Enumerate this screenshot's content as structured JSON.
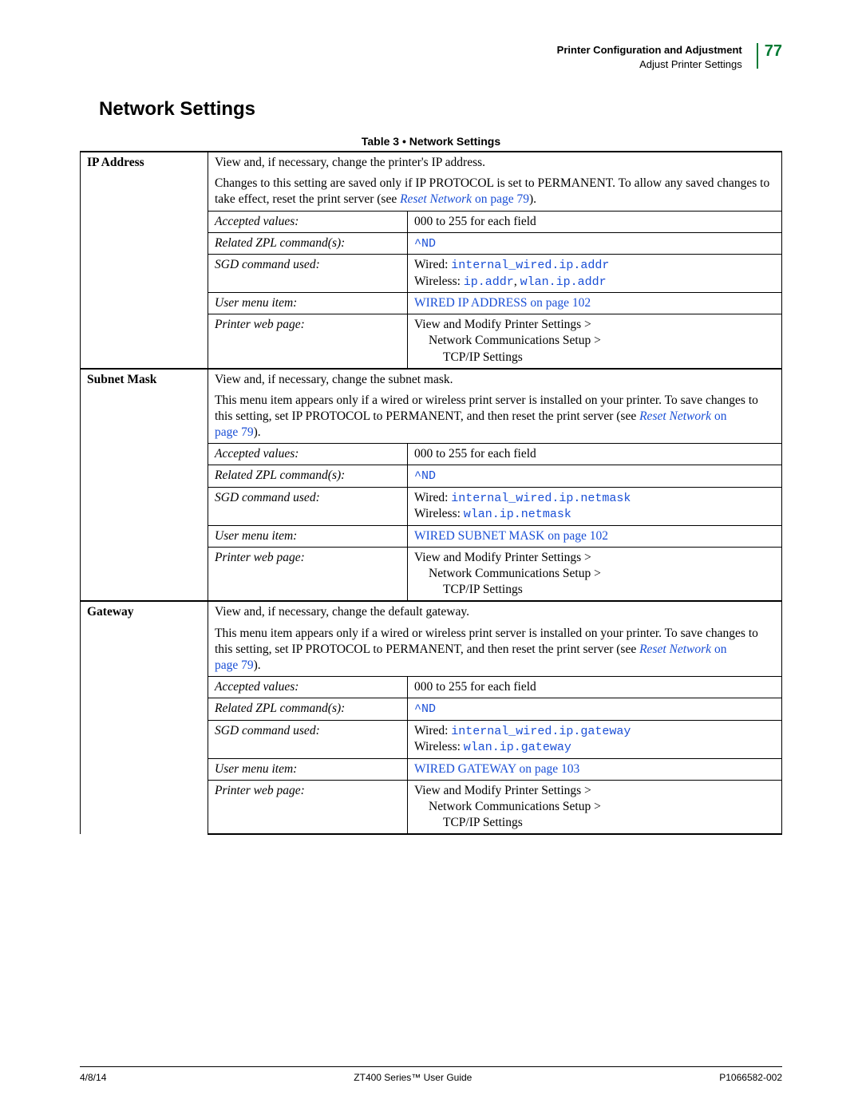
{
  "header": {
    "line1": "Printer Configuration and Adjustment",
    "line2": "Adjust Printer Settings",
    "page_number": "77"
  },
  "section_title": "Network Settings",
  "table_caption": "Table 3 • Network Settings",
  "labels": {
    "accepted_values": "Accepted values:",
    "zpl": "Related ZPL command(s):",
    "sgd": "SGD command used:",
    "menu": "User menu item:",
    "web": "Printer web page:"
  },
  "common": {
    "accepted": "000 to 255 for each field",
    "zpl_cmd": "^ND",
    "web1": "View and Modify Printer Settings >",
    "web2": "Network Communications Setup >",
    "web3": "TCP/IP Settings",
    "wired_prefix": "Wired: ",
    "wireless_prefix": "Wireless: ",
    "reset_link": "Reset Network",
    "reset_page_suffix": " on page 79"
  },
  "rows": {
    "ip": {
      "name": "IP Address",
      "desc1": "View and, if necessary, change the printer's IP address.",
      "desc2a": "Changes to this setting are saved only if IP PROTOCOL is set to PERMANENT. To allow any saved changes to take effect, reset the print server (see ",
      "desc2c": ").",
      "sgd_wired": "internal_wired.ip.addr",
      "sgd_wireless_a": "ip.addr",
      "sgd_wireless_sep": ", ",
      "sgd_wireless_b": "wlan.ip.addr",
      "menu_link": "WIRED IP ADDRESS on page 102"
    },
    "subnet": {
      "name": "Subnet Mask",
      "desc1": "View and, if necessary, change the subnet mask.",
      "desc2a": "This menu item appears only if a wired or wireless print server is installed on your printer. To save changes to this setting, set IP PROTOCOL to PERMANENT, and then reset the print server (see ",
      "desc2c": ").",
      "sgd_wired": "internal_wired.ip.netmask",
      "sgd_wireless": "wlan.ip.netmask",
      "menu_link": "WIRED SUBNET MASK on page 102"
    },
    "gateway": {
      "name": "Gateway",
      "desc1": "View and, if necessary, change the default gateway.",
      "desc2a": "This menu item appears only if a wired or wireless print server is installed on your printer. To save changes to this setting, set IP PROTOCOL to PERMANENT, and then reset the print server (see ",
      "desc2c": ").",
      "sgd_wired": "internal_wired.ip.gateway",
      "sgd_wireless": "wlan.ip.gateway",
      "menu_link": "WIRED GATEWAY on page 103"
    }
  },
  "footer": {
    "left": "4/8/14",
    "center": "ZT400 Series™ User Guide",
    "right": "P1066582-002"
  }
}
